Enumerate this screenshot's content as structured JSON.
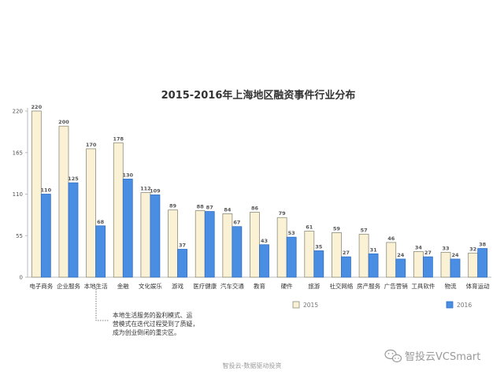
{
  "chart_data": {
    "type": "bar",
    "title": "2015-2016年上海地区融资事件行业分布",
    "categories": [
      "电子商务",
      "企业服务",
      "本地生活",
      "金融",
      "文化娱乐",
      "游戏",
      "医疗健康",
      "汽车交通",
      "教育",
      "硬件",
      "旅游",
      "社交网络",
      "房产服务",
      "广告营销",
      "工具软件",
      "物流",
      "体育运动"
    ],
    "series": [
      {
        "name": "2015",
        "values": [
          220,
          200,
          170,
          178,
          112,
          89,
          88,
          84,
          86,
          79,
          61,
          59,
          57,
          46,
          34,
          33,
          32
        ],
        "color": "#fbf2d6",
        "stroke": "#8c8c7a"
      },
      {
        "name": "2016",
        "values": [
          110,
          125,
          68,
          130,
          109,
          37,
          87,
          67,
          43,
          53,
          35,
          27,
          31,
          24,
          27,
          24,
          38
        ],
        "color": "#4a8ee4",
        "stroke": "#2f6fc4"
      }
    ],
    "yticks": [
      0,
      55,
      110,
      165,
      220
    ],
    "ylim": [
      0,
      220
    ],
    "grid": false,
    "legend_position": "bottom-right"
  },
  "annotation": {
    "lines": [
      "本地生活服务的盈利模式、运",
      "营模式在迭代过程受到了质疑，",
      "成为创业倒闭的重灾区。"
    ]
  },
  "footer": "智投云-数据驱动投资",
  "watermark": "智投云VCSmart"
}
